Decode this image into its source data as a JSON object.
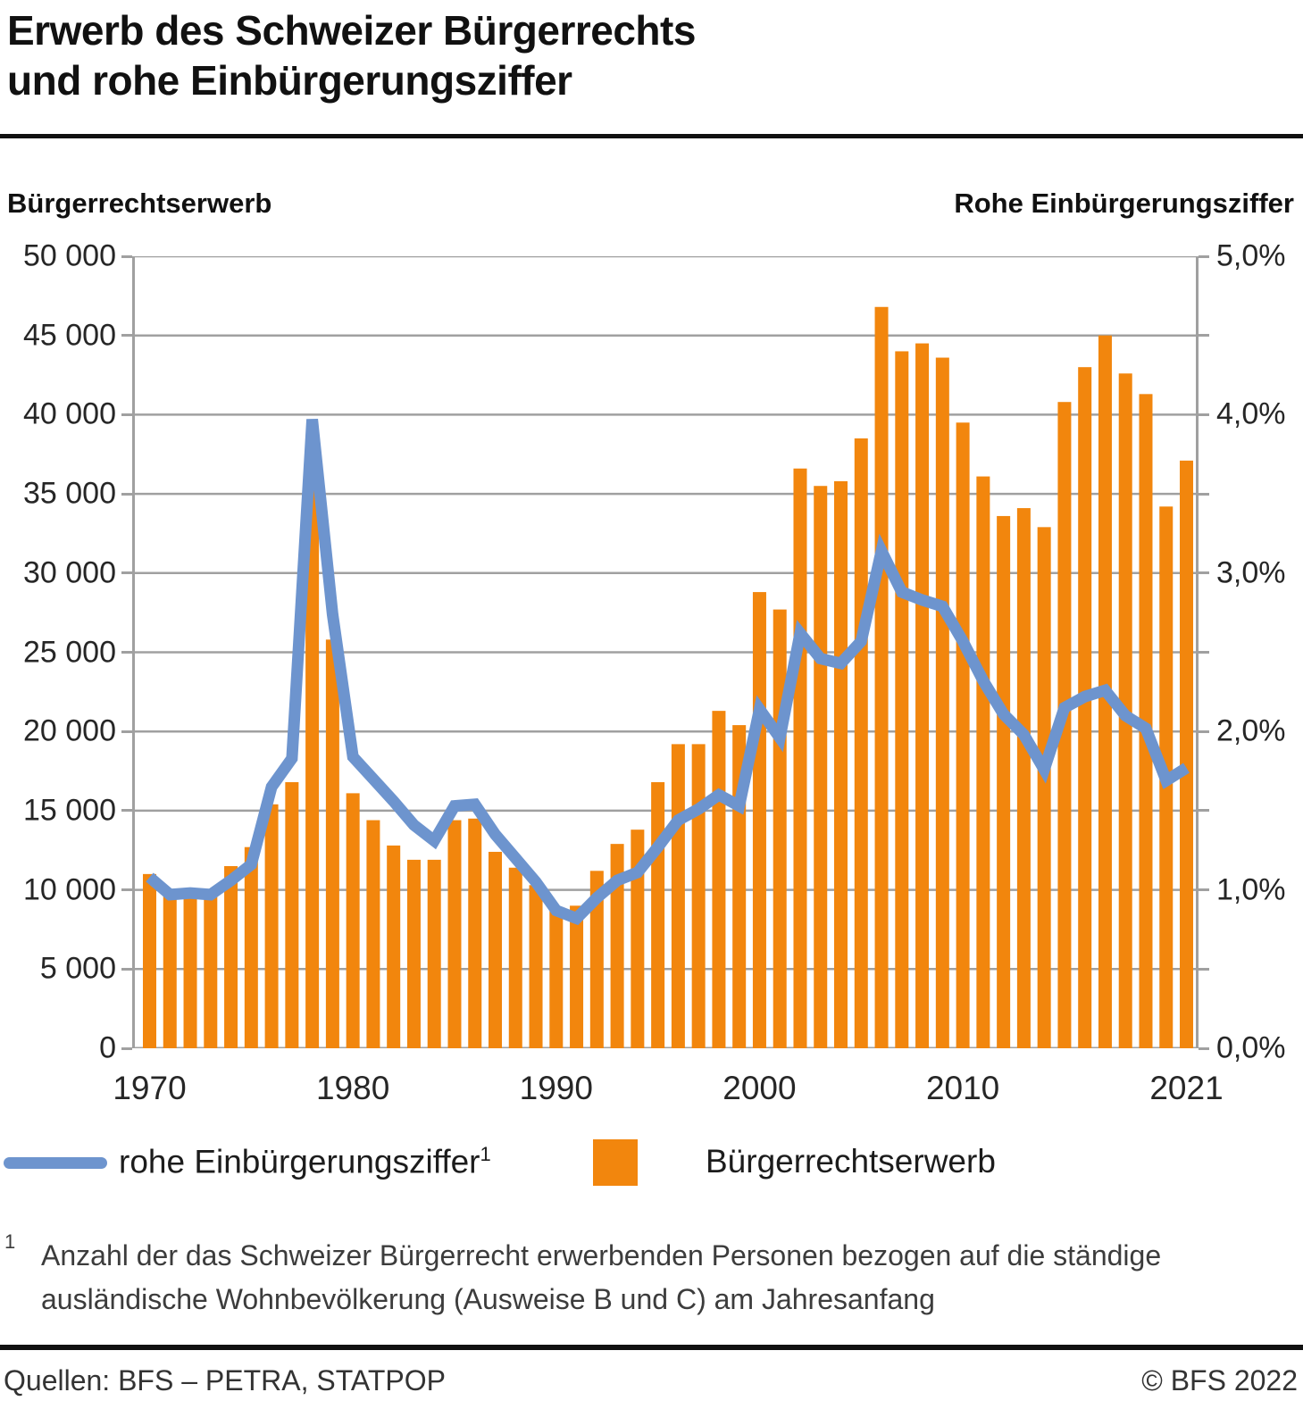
{
  "title": {
    "line1": "Erwerb des Schweizer Bürgerrechts",
    "line2": "und rohe Einbürgerungsziffer"
  },
  "axis_headers": {
    "left": "Bürgerrechtserwerb",
    "right": "Rohe Einbürgerungsziffer"
  },
  "legend": {
    "line_item": {
      "label": "rohe Einbürgerungsziffer",
      "sup": "1"
    },
    "bar_item": {
      "label": "Bürgerrechtserwerb"
    }
  },
  "footnote": {
    "marker": "1",
    "line1": "Anzahl der das Schweizer Bürgerrecht erwerbenden Personen bezogen auf die ständige",
    "line2": "ausländische Wohnbevölkerung (Ausweise B und C) am Jahresanfang"
  },
  "footer": {
    "source": "Quellen: BFS – PETRA, STATPOP",
    "copyright": "© BFS 2022"
  },
  "colors": {
    "bar": "#F2860D",
    "line": "#6D94CE",
    "grid": "#A0A0A0"
  },
  "chart_data": {
    "type": "bar+line",
    "title": "Erwerb des Schweizer Bürgerrechts und rohe Einbürgerungsziffer",
    "x": [
      1970,
      1971,
      1972,
      1973,
      1974,
      1975,
      1976,
      1977,
      1978,
      1979,
      1980,
      1981,
      1982,
      1983,
      1984,
      1985,
      1986,
      1987,
      1988,
      1989,
      1990,
      1991,
      1992,
      1993,
      1994,
      1995,
      1996,
      1997,
      1998,
      1999,
      2000,
      2001,
      2002,
      2003,
      2004,
      2005,
      2006,
      2007,
      2008,
      2009,
      2010,
      2011,
      2012,
      2013,
      2014,
      2015,
      2016,
      2017,
      2018,
      2019,
      2020,
      2021
    ],
    "series": [
      {
        "name": "Bürgerrechtserwerb",
        "type": "bar",
        "axis": "left",
        "values": [
          11000,
          9700,
          9600,
          9600,
          11500,
          12700,
          15400,
          16800,
          37300,
          25800,
          16100,
          14400,
          12800,
          11900,
          11900,
          14400,
          14500,
          12400,
          11400,
          10300,
          8700,
          9000,
          11200,
          12900,
          13800,
          16800,
          19200,
          19200,
          21300,
          20400,
          28800,
          27700,
          36600,
          35500,
          35800,
          38500,
          46800,
          44000,
          44500,
          43600,
          39500,
          36100,
          33600,
          34100,
          32900,
          40800,
          43000,
          45000,
          42600,
          41300,
          34200,
          37100
        ]
      },
      {
        "name": "rohe Einbürgerungsziffer",
        "type": "line",
        "axis": "right",
        "values": [
          1.08,
          0.97,
          0.98,
          0.97,
          1.06,
          1.16,
          1.65,
          1.83,
          3.97,
          2.74,
          1.84,
          1.7,
          1.56,
          1.41,
          1.31,
          1.53,
          1.54,
          1.35,
          1.2,
          1.05,
          0.87,
          0.82,
          0.95,
          1.06,
          1.11,
          1.27,
          1.44,
          1.51,
          1.6,
          1.53,
          2.14,
          1.96,
          2.62,
          2.46,
          2.43,
          2.57,
          3.14,
          2.88,
          2.83,
          2.79,
          2.57,
          2.32,
          2.11,
          1.98,
          1.76,
          2.15,
          2.22,
          2.26,
          2.1,
          2.02,
          1.69,
          1.77
        ]
      }
    ],
    "left_axis": {
      "min": 0,
      "max": 50000,
      "tick_step": 5000,
      "labels": [
        "50 000",
        "45 000",
        "40 000",
        "35 000",
        "30 000",
        "25 000",
        "20 000",
        "15 000",
        "10 000",
        "5 000",
        "0"
      ]
    },
    "right_axis": {
      "min": 0,
      "max": 5,
      "tick_step": 0.5,
      "label_step": 1,
      "labels": [
        "5,0%",
        "4,0%",
        "3,0%",
        "2,0%",
        "1,0%",
        "0,0%"
      ]
    },
    "x_labels": [
      {
        "label": "1970",
        "year": 1970
      },
      {
        "label": "1980",
        "year": 1980
      },
      {
        "label": "1990",
        "year": 1990
      },
      {
        "label": "2000",
        "year": 2000
      },
      {
        "label": "2010",
        "year": 2010
      },
      {
        "label": "2021",
        "year": 2021
      }
    ],
    "grid": true,
    "legend_position": "bottom"
  }
}
